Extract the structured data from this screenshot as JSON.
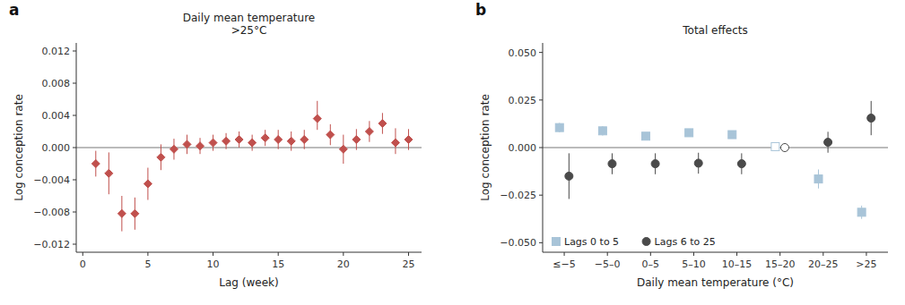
{
  "chart_data": [
    {
      "type": "scatter",
      "title": "Daily mean temperature\n>25°C",
      "xlabel": "Lag (week)",
      "ylabel": "Log conception rate",
      "annotations": [
        "a"
      ],
      "grid": false,
      "x": [
        1,
        2,
        3,
        4,
        5,
        6,
        7,
        8,
        9,
        10,
        11,
        12,
        13,
        14,
        15,
        16,
        17,
        18,
        19,
        20,
        21,
        22,
        23,
        24,
        25
      ],
      "xlim": [
        -0.5,
        26
      ],
      "xticks": [
        0,
        5,
        10,
        15,
        20,
        25
      ],
      "ylim": [
        -0.013,
        0.013
      ],
      "yticks": [
        {
          "value": -0.012,
          "label": "−0.012"
        },
        {
          "value": -0.008,
          "label": "−0.008"
        },
        {
          "value": -0.004,
          "label": "−0.004"
        },
        {
          "value": 0,
          "label": "0.000"
        },
        0.004,
        0.008,
        0.012
      ],
      "series": [
        {
          "color": "#C0504D",
          "marker": "diamond",
          "values": [
            -0.002,
            -0.0032,
            -0.0082,
            -0.0082,
            -0.0045,
            -0.0012,
            -0.0002,
            0.0004,
            0.0002,
            0.0006,
            0.0008,
            0.001,
            0.0006,
            0.0012,
            0.001,
            0.0008,
            0.001,
            0.0036,
            0.0016,
            -0.0002,
            0.001,
            0.002,
            0.003,
            0.0006,
            0.001
          ],
          "yerr_lo": [
            0.0016,
            0.0026,
            0.0022,
            0.002,
            0.002,
            0.0016,
            0.0013,
            0.0012,
            0.001,
            0.001,
            0.001,
            0.001,
            0.001,
            0.001,
            0.0012,
            0.0012,
            0.0012,
            0.0014,
            0.0013,
            0.0018,
            0.0013,
            0.0013,
            0.0013,
            0.0014,
            0.0013
          ],
          "yerr_hi": [
            0.0016,
            0.0026,
            0.0022,
            0.002,
            0.002,
            0.0016,
            0.0013,
            0.0012,
            0.001,
            0.001,
            0.001,
            0.001,
            0.001,
            0.001,
            0.0012,
            0.0012,
            0.0012,
            0.0022,
            0.0013,
            0.0018,
            0.0013,
            0.0013,
            0.0013,
            0.0018,
            0.0013
          ]
        }
      ]
    },
    {
      "type": "scatter",
      "title": "Total effects",
      "xlabel": "Daily mean temperature (°C)",
      "ylabel": "Log conception rate",
      "annotations": [
        "b"
      ],
      "grid": false,
      "legend": "lower left",
      "categories": [
        "≤−5",
        "−5–0",
        "0–5",
        "5–10",
        "10–15",
        "15–20",
        "20–25",
        ">25"
      ],
      "ylim": [
        -0.055,
        0.055
      ],
      "yticks": [
        {
          "value": -0.05,
          "label": "−0.050"
        },
        {
          "value": -0.025,
          "label": "−0.025"
        },
        {
          "value": 0,
          "label": "0.000"
        },
        0.025,
        {
          "value": 0.05,
          "label": "0.050"
        }
      ],
      "series": [
        {
          "name": "Lags 0 to 5",
          "color": "#A8C4D8",
          "marker": "square",
          "colors": [
            "#A8C4D8",
            "#A8C4D8",
            "#A8C4D8",
            "#A8C4D8",
            "#A8C4D8",
            "#ffffff",
            "#A8C4D8",
            "#A8C4D8"
          ],
          "values": [
            0.0105,
            0.0088,
            0.006,
            0.0078,
            0.0068,
            0.0005,
            -0.0165,
            -0.034
          ],
          "yerr_lo": [
            0.0025,
            0.0025,
            0.0018,
            0.0016,
            0.0016,
            0.002,
            0.005,
            0.0035
          ],
          "yerr_hi": [
            0.0025,
            0.0025,
            0.0018,
            0.0016,
            0.0016,
            0.002,
            0.005,
            0.0035
          ]
        },
        {
          "name": "Lags 6 to 25",
          "color": "#4a4a4a",
          "marker": "circle",
          "colors": [
            "#4a4a4a",
            "#4a4a4a",
            "#4a4a4a",
            "#4a4a4a",
            "#4a4a4a",
            "#ffffff",
            "#4a4a4a",
            "#4a4a4a"
          ],
          "values": [
            -0.015,
            -0.0085,
            -0.0085,
            -0.0082,
            -0.0085,
            0.0,
            0.0028,
            0.0155
          ],
          "yerr_lo": [
            0.012,
            0.0055,
            0.0055,
            0.0055,
            0.0055,
            0.0022,
            0.0055,
            0.009
          ],
          "yerr_hi": [
            0.012,
            0.0055,
            0.0055,
            0.0055,
            0.0055,
            0.0022,
            0.0055,
            0.009
          ]
        }
      ]
    }
  ]
}
